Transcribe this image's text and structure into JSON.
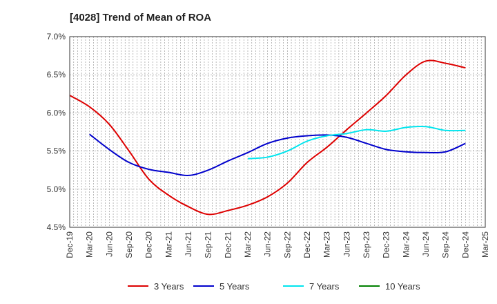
{
  "chart_data": {
    "type": "line",
    "title": "[4028]  Trend of Mean of ROA",
    "x_categories": [
      "Dec-19",
      "Mar-20",
      "Jun-20",
      "Sep-20",
      "Dec-20",
      "Mar-21",
      "Jun-21",
      "Sep-21",
      "Dec-21",
      "Mar-22",
      "Jun-22",
      "Sep-22",
      "Dec-22",
      "Mar-23",
      "Jun-23",
      "Sep-23",
      "Dec-23",
      "Mar-24",
      "Jun-24",
      "Sep-24",
      "Dec-24",
      "Mar-25"
    ],
    "ylim": [
      4.5,
      7.0
    ],
    "y_ticks": [
      "4.5%",
      "5.0%",
      "5.5%",
      "6.0%",
      "6.5%",
      "7.0%"
    ],
    "y_tick_values": [
      4.5,
      5.0,
      5.5,
      6.0,
      6.5,
      7.0
    ],
    "grid": true,
    "legend_position": "bottom",
    "series": [
      {
        "name": "3 Years",
        "color": "#dd0000",
        "values": [
          6.23,
          6.08,
          5.85,
          5.5,
          5.13,
          4.92,
          4.77,
          4.67,
          4.72,
          4.79,
          4.9,
          5.08,
          5.35,
          5.55,
          5.78,
          6.0,
          6.23,
          6.5,
          6.68,
          6.65,
          6.59,
          null
        ]
      },
      {
        "name": "5 Years",
        "color": "#0000cc",
        "values": [
          null,
          5.72,
          5.52,
          5.35,
          5.26,
          5.22,
          5.18,
          5.25,
          5.37,
          5.48,
          5.6,
          5.67,
          5.7,
          5.71,
          5.68,
          5.6,
          5.52,
          5.49,
          5.48,
          5.49,
          5.6,
          null
        ]
      },
      {
        "name": "7 Years",
        "color": "#00e5ee",
        "values": [
          null,
          null,
          null,
          null,
          null,
          null,
          null,
          null,
          null,
          5.4,
          5.42,
          5.5,
          5.63,
          5.7,
          5.73,
          5.78,
          5.76,
          5.81,
          5.82,
          5.77,
          5.77,
          null
        ]
      },
      {
        "name": "10 Years",
        "color": "#008000",
        "values": [
          null,
          null,
          null,
          null,
          null,
          null,
          null,
          null,
          null,
          null,
          null,
          null,
          null,
          null,
          null,
          null,
          null,
          null,
          null,
          null,
          null,
          null
        ]
      }
    ]
  }
}
